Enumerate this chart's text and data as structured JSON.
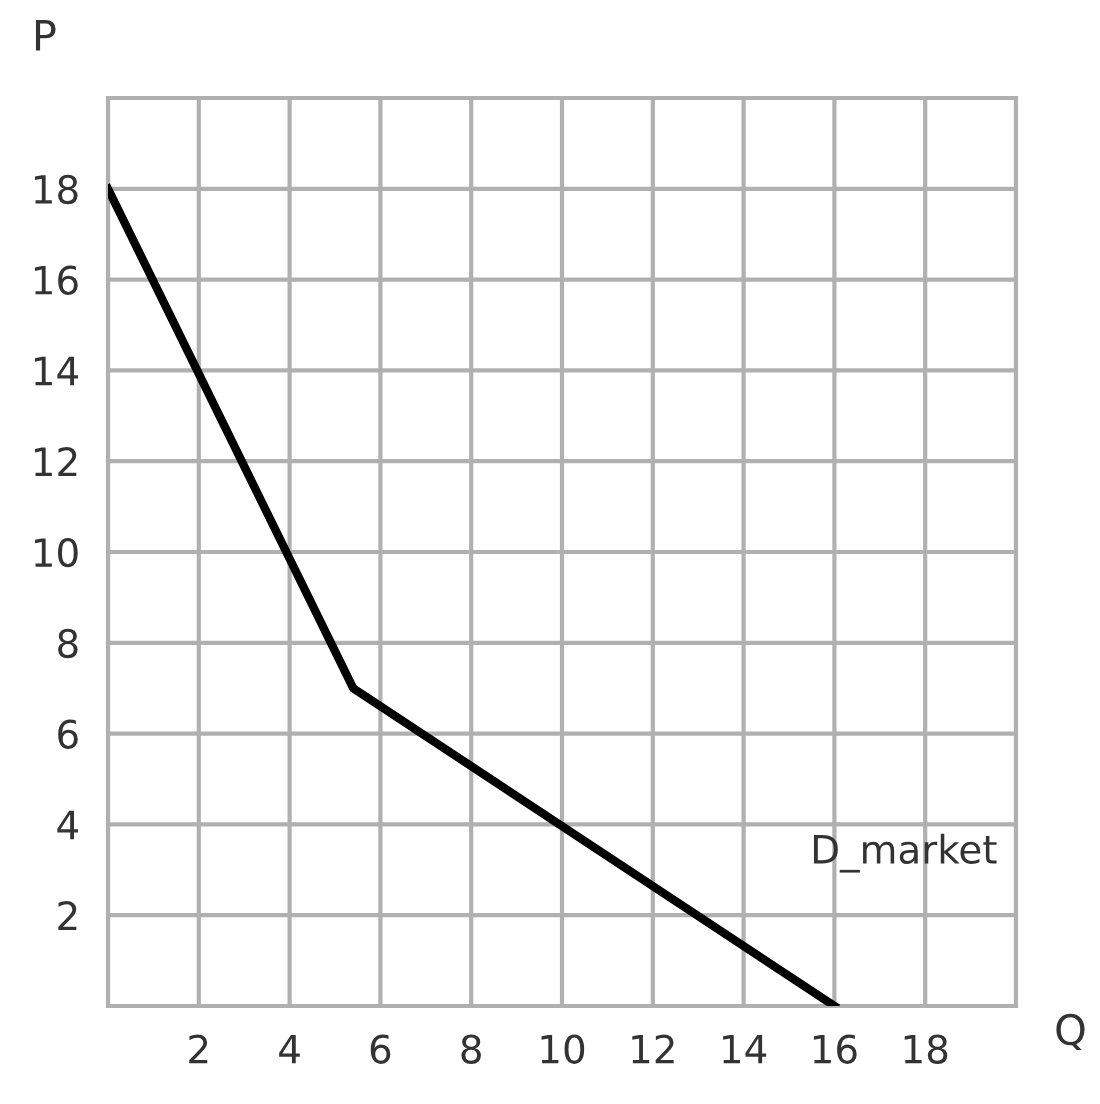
{
  "chart_data": {
    "type": "line",
    "xlabel": "Q",
    "ylabel": "P",
    "series": [
      {
        "name": "D_market",
        "color": "#000000",
        "x": [
          0,
          5.4,
          16
        ],
        "values": [
          18,
          7,
          0
        ]
      }
    ],
    "xlim": [
      0,
      20
    ],
    "ylim": [
      0,
      20
    ],
    "xticks": [
      {
        "value": 0,
        "label": null
      },
      2,
      4,
      6,
      8,
      10,
      12,
      14,
      16,
      18,
      {
        "value": 20,
        "label": null
      }
    ],
    "yticks": [
      {
        "value": 0,
        "label": null
      },
      2,
      4,
      6,
      8,
      10,
      12,
      14,
      16,
      18,
      {
        "value": 20,
        "label": null
      }
    ],
    "grid": true,
    "legend": false,
    "line_style": "solid",
    "marker": "none"
  }
}
